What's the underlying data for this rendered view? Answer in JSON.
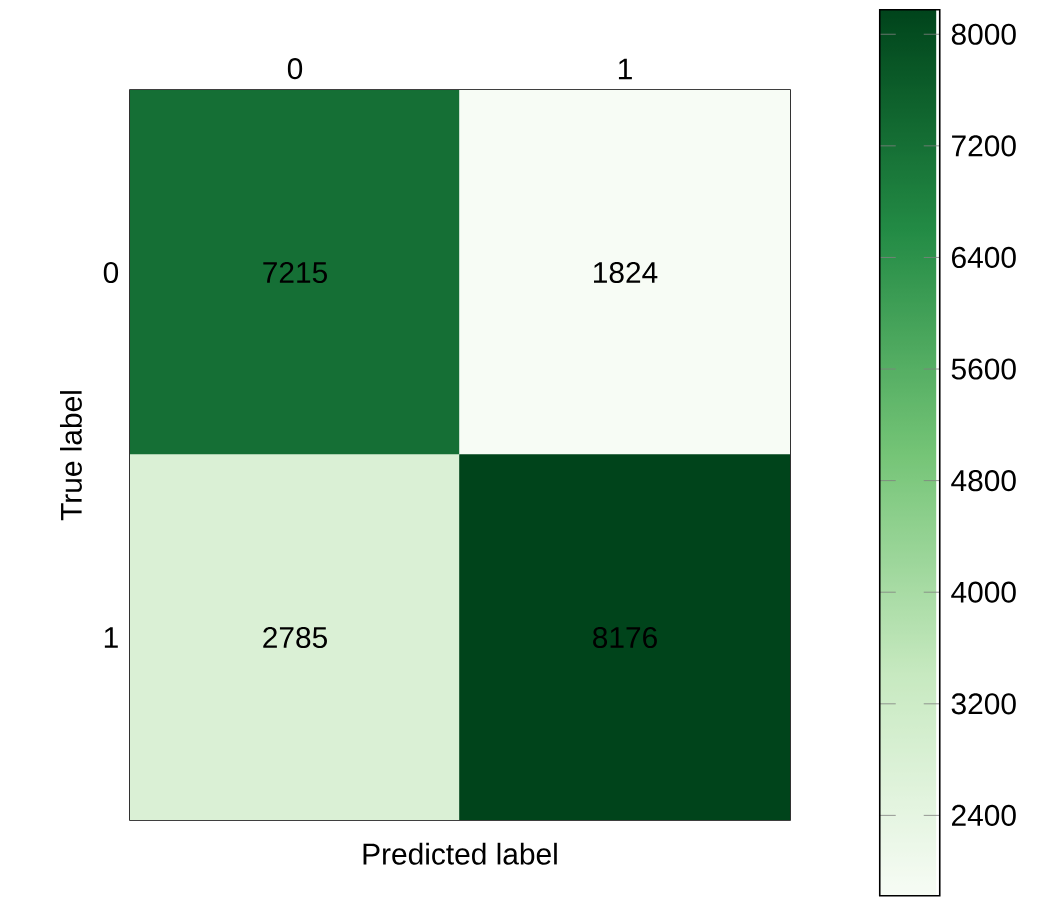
{
  "chart_data": {
    "type": "heatmap",
    "xlabel": "Predicted label",
    "ylabel": "True label",
    "categories": [
      "0",
      "1"
    ],
    "y_categories": [
      "0",
      "1"
    ],
    "cells": [
      [
        7215,
        1824
      ],
      [
        2785,
        8176
      ]
    ],
    "clim": [
      1824,
      8176
    ],
    "data_labels": true,
    "cticks": [
      2400,
      3200,
      4000,
      4800,
      5600,
      6400,
      7200,
      8000
    ]
  }
}
